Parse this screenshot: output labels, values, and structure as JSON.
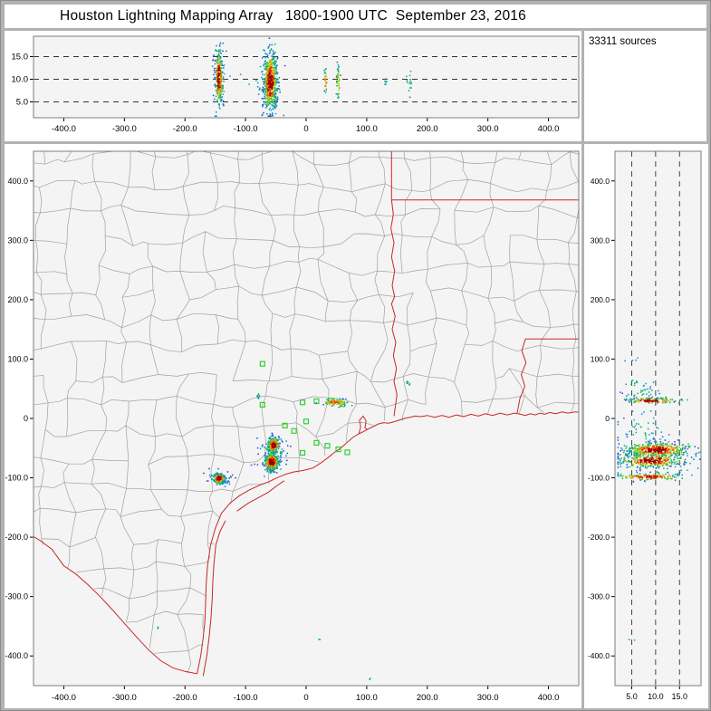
{
  "title": "Houston Lightning Mapping Array   1800-1900 UTC  September 23, 2016",
  "sources_label": "33311 sources",
  "colors": {
    "frame": "#b2b2b2",
    "panel_bg": "#ffffff",
    "plot_bg": "#f4f4f4",
    "plot_border": "#7d7d7d",
    "county_line": "#a0a0a0",
    "state_border": "#c62828",
    "station_marker": "#2fd12f",
    "guide_dash": "#333333",
    "text": "#000000"
  },
  "render": {
    "seed": 1234,
    "palette_stops": [
      [
        0,
        "#2833c8"
      ],
      [
        0.2,
        "#00a0d2"
      ],
      [
        0.38,
        "#00b93c"
      ],
      [
        0.55,
        "#8fd200"
      ],
      [
        0.7,
        "#ffb400"
      ],
      [
        0.83,
        "#ff5000"
      ],
      [
        0.93,
        "#e00000"
      ],
      [
        1,
        "#7a0000"
      ]
    ]
  },
  "chart_data": [
    {
      "id": "alt-vs-ew",
      "type": "scatter",
      "x_axis": {
        "range": [
          -450,
          450
        ],
        "ticks": [
          -400,
          -300,
          -200,
          -100,
          0,
          100,
          200,
          300,
          400
        ],
        "tick_labels": [
          "-400.0",
          "-300.0",
          "-200.0",
          "-100.0",
          "0",
          "100.0",
          "200.0",
          "300.0",
          "400.0"
        ]
      },
      "y_axis": {
        "range": [
          1.5,
          19.5
        ],
        "ticks": [
          5,
          10,
          15
        ],
        "tick_labels": [
          "5.0",
          "10.0",
          "15.0"
        ],
        "guide": "dashed"
      },
      "clusters": [
        {
          "ew": -145,
          "alt": 10.3,
          "s_ew": 3.2,
          "s_alt": 2.9,
          "n": 260,
          "tmin": 0,
          "tmax": 1
        },
        {
          "ew": -145,
          "alt": 9.5,
          "s_ew": 5.5,
          "s_alt": 4.0,
          "n": 60,
          "tmin": 0,
          "tmax": 0.33
        },
        {
          "ew": -60,
          "alt": 9.6,
          "s_ew": 5.5,
          "s_alt": 3.2,
          "n": 560,
          "tmin": 0,
          "tmax": 1
        },
        {
          "ew": -60,
          "alt": 9.0,
          "s_ew": 9.0,
          "s_alt": 4.5,
          "n": 120,
          "tmin": 0,
          "tmax": 0.35
        },
        {
          "ew": 31,
          "alt": 9.8,
          "s_ew": 1.2,
          "s_alt": 1.5,
          "n": 25,
          "tmin": 0.05,
          "tmax": 0.8
        },
        {
          "ew": 52,
          "alt": 9.5,
          "s_ew": 1.6,
          "s_alt": 2.0,
          "n": 45,
          "tmin": 0.05,
          "tmax": 0.7
        },
        {
          "ew": 130,
          "alt": 10.2,
          "s_ew": 1.0,
          "s_alt": 0.8,
          "n": 7,
          "tmin": 0.1,
          "tmax": 0.4
        },
        {
          "ew": 170,
          "alt": 9.4,
          "s_ew": 2.0,
          "s_alt": 1.2,
          "n": 14,
          "tmin": 0.1,
          "tmax": 0.45
        },
        {
          "ew": -100,
          "alt": 10.0,
          "s_ew": 22,
          "s_alt": 1.4,
          "n": 10,
          "tmin": 0.1,
          "tmax": 0.3
        }
      ]
    },
    {
      "id": "plan-view-map",
      "type": "scatter",
      "x_axis": {
        "range": [
          -450,
          450
        ],
        "ticks": [
          -400,
          -300,
          -200,
          -100,
          0,
          100,
          200,
          300,
          400
        ],
        "tick_labels": [
          "-400.0",
          "-300.0",
          "-200.0",
          "-100.0",
          "0",
          "100.0",
          "200.0",
          "300.0",
          "400.0"
        ]
      },
      "y_axis": {
        "range": [
          -450,
          450
        ],
        "ticks": [
          -400,
          -300,
          -200,
          -100,
          0,
          100,
          200,
          300,
          400
        ],
        "tick_labels": [
          "-400.0",
          "-300.0",
          "-200.0",
          "-100.0",
          "0",
          "100.0",
          "200.0",
          "300.0",
          "400.0"
        ]
      },
      "stations": [
        [
          -72,
          92
        ],
        [
          -72,
          23
        ],
        [
          -35,
          -12
        ],
        [
          -20,
          -21
        ],
        [
          0,
          -5
        ],
        [
          -6,
          27
        ],
        [
          17,
          29
        ],
        [
          41,
          30
        ],
        [
          60,
          24
        ],
        [
          17,
          -41
        ],
        [
          35,
          -46
        ],
        [
          53,
          -52
        ],
        [
          68,
          -57
        ],
        [
          -6,
          -58
        ]
      ],
      "clusters": [
        {
          "ew": -145,
          "ns": -100,
          "s_ew": 4.5,
          "s_ns": 4.0,
          "n": 230,
          "tmin": 0,
          "tmax": 1
        },
        {
          "ew": -145,
          "ns": -100,
          "s_ew": 9.0,
          "s_ns": 7.0,
          "n": 70,
          "tmin": 0,
          "tmax": 0.33
        },
        {
          "ew": -55,
          "ns": -44,
          "s_ew": 4.5,
          "s_ns": 5.5,
          "n": 280,
          "tmin": 0,
          "tmax": 1
        },
        {
          "ew": -58,
          "ns": -72,
          "s_ew": 5.5,
          "s_ns": 7.0,
          "n": 380,
          "tmin": 0,
          "tmax": 1
        },
        {
          "ew": -57,
          "ns": -60,
          "s_ew": 13,
          "s_ns": 17,
          "n": 90,
          "tmin": 0,
          "tmax": 0.36
        },
        {
          "ew": 48,
          "ns": 28,
          "s_ew": 11,
          "s_ns": 3,
          "n": 90,
          "tmin": 0.05,
          "tmax": 0.85
        },
        {
          "ew": -80,
          "ns": 40,
          "s_ew": 1.5,
          "s_ns": 1.5,
          "n": 9,
          "tmin": 0.1,
          "tmax": 0.45
        },
        {
          "ew": 168,
          "ns": 61,
          "s_ew": 2,
          "s_ns": 2,
          "n": 10,
          "tmin": 0.1,
          "tmax": 0.45
        },
        {
          "ew": 20,
          "ns": -372,
          "s_ew": 1,
          "s_ns": 1,
          "n": 2,
          "tmin": 0.1,
          "tmax": 0.3
        },
        {
          "ew": 104,
          "ns": -438,
          "s_ew": 1,
          "s_ns": 1,
          "n": 2,
          "tmin": 0.1,
          "tmax": 0.3
        },
        {
          "ew": -246,
          "ns": -352,
          "s_ew": 1,
          "s_ns": 1,
          "n": 2,
          "tmin": 0.1,
          "tmax": 0.3
        }
      ]
    },
    {
      "id": "alt-vs-ns",
      "type": "scatter",
      "x_axis": {
        "range": [
          1.5,
          19.5
        ],
        "ticks": [
          5,
          10,
          15
        ],
        "tick_labels": [
          "5.0",
          "10.0",
          "15.0"
        ],
        "guide": "dashed"
      },
      "y_axis": {
        "range": [
          -450,
          450
        ],
        "ticks": [
          -400,
          -300,
          -200,
          -100,
          0,
          100,
          200,
          300,
          400
        ],
        "tick_labels": [
          "-400.0",
          "-300.0",
          "-200.0",
          "-100.0",
          "0",
          "100.0",
          "200.0",
          "300.0",
          "400.0"
        ]
      },
      "clusters": [
        {
          "alt": 9.0,
          "ns": 31,
          "s_alt": 2.8,
          "s_ns": 2.2,
          "n": 140,
          "tmin": 0,
          "tmax": 1
        },
        {
          "alt": 7.0,
          "ns": 44,
          "s_alt": 2.0,
          "s_ns": 7.0,
          "n": 30,
          "tmin": 0.05,
          "tmax": 0.35
        },
        {
          "alt": 10.0,
          "ns": -52,
          "s_alt": 3.2,
          "s_ns": 6.0,
          "n": 420,
          "tmin": 0,
          "tmax": 1
        },
        {
          "alt": 9.0,
          "ns": -70,
          "s_alt": 3.4,
          "s_ns": 6.0,
          "n": 320,
          "tmin": 0,
          "tmax": 1
        },
        {
          "alt": 8.5,
          "ns": -97,
          "s_alt": 3.4,
          "s_ns": 3.0,
          "n": 150,
          "tmin": 0,
          "tmax": 0.95
        },
        {
          "alt": 8.0,
          "ns": -62,
          "s_alt": 5.0,
          "s_ns": 15,
          "n": 90,
          "tmin": 0,
          "tmax": 0.4
        },
        {
          "alt": 7.0,
          "ns": -20,
          "s_alt": 2.5,
          "s_ns": 16,
          "n": 45,
          "tmin": 0.05,
          "tmax": 0.35
        },
        {
          "alt": 6.0,
          "ns": 60,
          "s_alt": 1.5,
          "s_ns": 3.0,
          "n": 12,
          "tmin": 0.1,
          "tmax": 0.4
        },
        {
          "alt": 6.0,
          "ns": 100,
          "s_alt": 1.0,
          "s_ns": 2.0,
          "n": 4,
          "tmin": 0.1,
          "tmax": 0.35
        },
        {
          "alt": 5.0,
          "ns": -372,
          "s_alt": 0.5,
          "s_ns": 1.0,
          "n": 2,
          "tmin": 0.1,
          "tmax": 0.3
        }
      ]
    }
  ],
  "map_geo": {
    "county_grid": {
      "spacing": 46,
      "jitter": 13,
      "skip": 0.09,
      "perturb": 6,
      "seed": 77
    },
    "red_borders": {
      "rio_grande": [
        [
          -460,
          -193
        ],
        [
          -440,
          -205
        ],
        [
          -420,
          -220
        ],
        [
          -400,
          -248
        ],
        [
          -380,
          -262
        ],
        [
          -360,
          -280
        ],
        [
          -340,
          -300
        ],
        [
          -320,
          -322
        ],
        [
          -300,
          -345
        ],
        [
          -280,
          -368
        ],
        [
          -260,
          -390
        ],
        [
          -240,
          -408
        ],
        [
          -220,
          -420
        ],
        [
          -200,
          -426
        ],
        [
          -180,
          -430
        ]
      ],
      "coastline": [
        [
          -180,
          -430
        ],
        [
          -174,
          -400
        ],
        [
          -170,
          -370
        ],
        [
          -167,
          -340
        ],
        [
          -166,
          -310
        ],
        [
          -165,
          -280
        ],
        [
          -163,
          -250
        ],
        [
          -158,
          -215
        ],
        [
          -150,
          -185
        ],
        [
          -140,
          -160
        ],
        [
          -126,
          -143
        ],
        [
          -110,
          -130
        ],
        [
          -93,
          -120
        ],
        [
          -76,
          -112
        ],
        [
          -62,
          -107
        ],
        [
          -48,
          -100
        ],
        [
          -34,
          -94
        ],
        [
          -20,
          -90
        ],
        [
          -8,
          -88
        ],
        [
          2,
          -86
        ],
        [
          12,
          -83
        ],
        [
          24,
          -75
        ],
        [
          36,
          -66
        ],
        [
          47,
          -57
        ],
        [
          57,
          -50
        ],
        [
          67,
          -41
        ],
        [
          77,
          -32
        ],
        [
          87,
          -26
        ],
        [
          95,
          -22
        ],
        [
          104,
          -17
        ],
        [
          112,
          -13
        ],
        [
          120,
          -9
        ],
        [
          128,
          -7
        ],
        [
          136,
          -8
        ],
        [
          144,
          -6
        ],
        [
          153,
          -3
        ],
        [
          162,
          0
        ],
        [
          171,
          2
        ],
        [
          180,
          4
        ],
        [
          190,
          3
        ],
        [
          200,
          5
        ],
        [
          212,
          2
        ],
        [
          224,
          5
        ],
        [
          236,
          2
        ],
        [
          248,
          6
        ],
        [
          260,
          3
        ],
        [
          272,
          7
        ],
        [
          284,
          4
        ],
        [
          296,
          8
        ],
        [
          308,
          5
        ],
        [
          320,
          9
        ],
        [
          332,
          6
        ],
        [
          344,
          9
        ],
        [
          354,
          7
        ],
        [
          362,
          5
        ],
        [
          370,
          8
        ],
        [
          378,
          6
        ],
        [
          386,
          9
        ],
        [
          394,
          7
        ],
        [
          402,
          10
        ],
        [
          412,
          8
        ],
        [
          422,
          11
        ],
        [
          432,
          9
        ],
        [
          444,
          11
        ],
        [
          460,
          10
        ]
      ],
      "galveston_bay": [
        [
          87,
          -26
        ],
        [
          90,
          -14
        ],
        [
          88,
          -3
        ],
        [
          94,
          4
        ],
        [
          99,
          -4
        ],
        [
          97,
          -16
        ],
        [
          102,
          -19
        ]
      ],
      "barrier_island_south": [
        [
          -170,
          -434
        ],
        [
          -164,
          -400
        ],
        [
          -160,
          -367
        ],
        [
          -157,
          -335
        ],
        [
          -155,
          -304
        ],
        [
          -154,
          -273
        ],
        [
          -152,
          -243
        ],
        [
          -149,
          -213
        ],
        [
          -142,
          -190
        ],
        [
          -133,
          -172
        ]
      ],
      "barrier_island_mid": [
        [
          -114,
          -156
        ],
        [
          -96,
          -143
        ],
        [
          -78,
          -133
        ],
        [
          -62,
          -124
        ],
        [
          -48,
          -113
        ],
        [
          -36,
          -105
        ]
      ],
      "ok_ar_border": [
        [
          141,
          458
        ],
        [
          141,
          368
        ]
      ],
      "ar_la_border": [
        [
          141,
          368
        ],
        [
          460,
          368
        ]
      ],
      "tx_la_border": [
        [
          141,
          368
        ],
        [
          144,
          344
        ],
        [
          140,
          320
        ],
        [
          145,
          296
        ],
        [
          141,
          272
        ],
        [
          146,
          248
        ],
        [
          142,
          224
        ],
        [
          146,
          205
        ],
        [
          141,
          193
        ],
        [
          147,
          172
        ],
        [
          142,
          150
        ],
        [
          148,
          128
        ],
        [
          144,
          106
        ],
        [
          149,
          84
        ],
        [
          145,
          62
        ],
        [
          150,
          40
        ],
        [
          147,
          18
        ],
        [
          145,
          4
        ]
      ],
      "la_ms_border": [
        [
          362,
          134
        ],
        [
          460,
          134
        ]
      ],
      "mississippi_river": [
        [
          362,
          134
        ],
        [
          356,
          114
        ],
        [
          363,
          94
        ],
        [
          355,
          74
        ],
        [
          361,
          54
        ],
        [
          353,
          34
        ],
        [
          350,
          18
        ],
        [
          348,
          8
        ]
      ]
    }
  }
}
